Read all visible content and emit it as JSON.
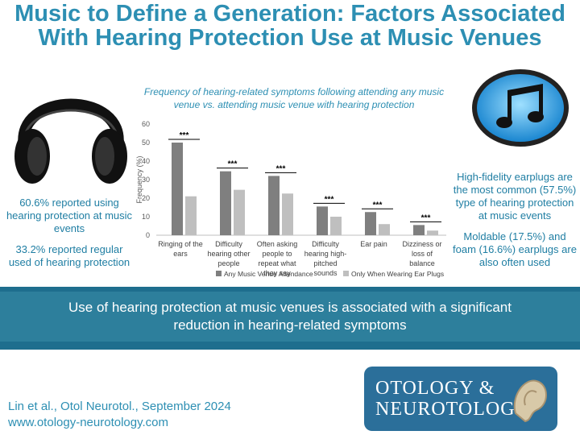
{
  "header": {
    "title": "Music to Define a Generation: Factors Associated With Hearing Protection Use at Music Venues"
  },
  "left_panel": {
    "stat1": "60.6% reported using hearing protection at music events",
    "stat2": "33.2% reported regular used of hearing protection"
  },
  "right_panel": {
    "stat1": "High-fidelity earplugs are the most common (57.5%) type of hearing protection at music events",
    "stat2": "Moldable (17.5%) and foam (16.6%) earplugs are also often used"
  },
  "chart_data": {
    "type": "bar",
    "title": "Frequency of hearing-related symptoms following attending any music venue vs. attending music venue with hearing protection",
    "ylabel": "Frequency (%)",
    "xlabel": "",
    "ylim": [
      0,
      60
    ],
    "yticks": [
      "0",
      "10",
      "20",
      "30",
      "40",
      "50",
      "60"
    ],
    "grid": false,
    "legend_position": "bottom",
    "categories": [
      [
        "Ringing of the",
        "ears"
      ],
      [
        "Difficulty",
        "hearing other",
        "people"
      ],
      [
        "Often asking",
        "people to",
        "repeat what",
        "they say"
      ],
      [
        "Difficulty",
        "hearing high-",
        "pitched",
        "sounds"
      ],
      [
        "Ear pain"
      ],
      [
        "Dizziness or",
        "loss of",
        "balance"
      ]
    ],
    "series": [
      {
        "name": "Any Music Venue Attendance",
        "color": "#7f7f7f",
        "values": [
          50,
          34.5,
          32,
          15.5,
          12.5,
          5.5
        ]
      },
      {
        "name": "Only When Wearing Ear Plugs",
        "color": "#bfbfbf",
        "values": [
          21,
          24.5,
          22.5,
          10,
          6,
          2.5
        ]
      }
    ],
    "annotations": [
      "***",
      "***",
      "***",
      "***",
      "***",
      "***"
    ]
  },
  "banner": {
    "text": "Use of hearing protection at music venues is associated with a significant reduction in hearing-related symptoms"
  },
  "citation": {
    "line1": "Lin et al., Otol Neurotol., September 2024",
    "line2": "www.otology-neurotology.com"
  },
  "journal_logo": {
    "line1": "OTOLOGY &",
    "line2": "NEUROTOLOGY"
  },
  "icons": [
    "headphones-icon",
    "music-note-icon"
  ],
  "colors": {
    "title": "#2d8fb3",
    "banner": "#2d7f9c"
  }
}
